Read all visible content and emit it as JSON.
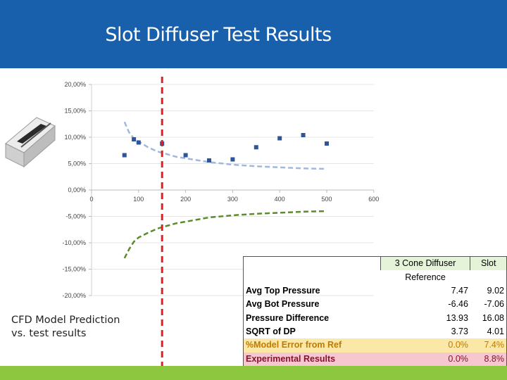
{
  "title": "Slot Diffuser Test Results",
  "caption": [
    "CFD Model Prediction",
    "vs. test results"
  ],
  "icon": "slot-diffuser-product-image",
  "colors": {
    "header": "#1960ac",
    "bottom_bar": "#8dc63f",
    "markers": "#2e5597",
    "upper_curve": "#9fb9de",
    "lower_curve": "#5b8b2b",
    "reference_line": "#e02020"
  },
  "chart_data": {
    "type": "scatter",
    "title": "",
    "xlabel": "",
    "ylabel": "",
    "xlim": [
      0,
      600
    ],
    "ylim": [
      -20,
      20
    ],
    "x_ticks": [
      "0",
      "100",
      "200",
      "300",
      "400",
      "500",
      "600"
    ],
    "y_ticks": [
      "20,00%",
      "15,00%",
      "10,00%",
      "5,00%",
      "0,00%",
      "-5,00%",
      "-10,00%",
      "-15,00%",
      "-20,00%"
    ],
    "y_tick_values": [
      20,
      15,
      10,
      5,
      0,
      -5,
      -10,
      -15,
      -20
    ],
    "grid": true,
    "legend": "none",
    "reference_x": 150,
    "series": [
      {
        "kind": "points",
        "x": [
          70,
          90,
          100,
          150,
          200,
          250,
          300,
          350,
          400,
          450,
          500
        ],
        "y": [
          6.6,
          9.6,
          9.0,
          8.8,
          6.6,
          5.6,
          5.8,
          8.1,
          9.8,
          10.4,
          8.8
        ]
      },
      {
        "kind": "dashed-curve",
        "x": [
          70,
          80,
          90,
          100,
          120,
          140,
          160,
          180,
          200,
          250,
          300,
          350,
          400,
          450,
          500
        ],
        "y": [
          12.9,
          10.9,
          9.8,
          9.2,
          8.1,
          7.3,
          6.8,
          6.3,
          6.0,
          5.3,
          4.8,
          4.5,
          4.3,
          4.1,
          4.0
        ]
      },
      {
        "kind": "dashed-curve",
        "x": [
          70,
          80,
          90,
          100,
          120,
          140,
          160,
          180,
          200,
          250,
          300,
          350,
          400,
          450,
          500
        ],
        "y": [
          -12.9,
          -11.2,
          -9.8,
          -9.0,
          -8.1,
          -7.3,
          -6.8,
          -6.3,
          -6.0,
          -5.2,
          -4.8,
          -4.5,
          -4.3,
          -4.1,
          -4.0
        ]
      }
    ]
  },
  "table": {
    "col_ref": "3 Cone Diffuser Reference",
    "col_ref_lines": [
      "3 Cone Diffuser",
      "Reference"
    ],
    "col_slot": "Slot",
    "rows": [
      {
        "label": "Avg Top Pressure",
        "ref": "7.47",
        "slot": "9.02"
      },
      {
        "label": "Avg Bot Pressure",
        "ref": "-6.46",
        "slot": "-7.06"
      },
      {
        "label": "Pressure Difference",
        "ref": "13.93",
        "slot": "16.08"
      },
      {
        "label": "SQRT of DP",
        "ref": "3.73",
        "slot": "4.01"
      },
      {
        "label": "%Model Error from Ref",
        "ref": "0.0%",
        "slot": "7.4%"
      },
      {
        "label": "Experimental Results",
        "ref": "0.0%",
        "slot": "8.8%"
      }
    ]
  }
}
